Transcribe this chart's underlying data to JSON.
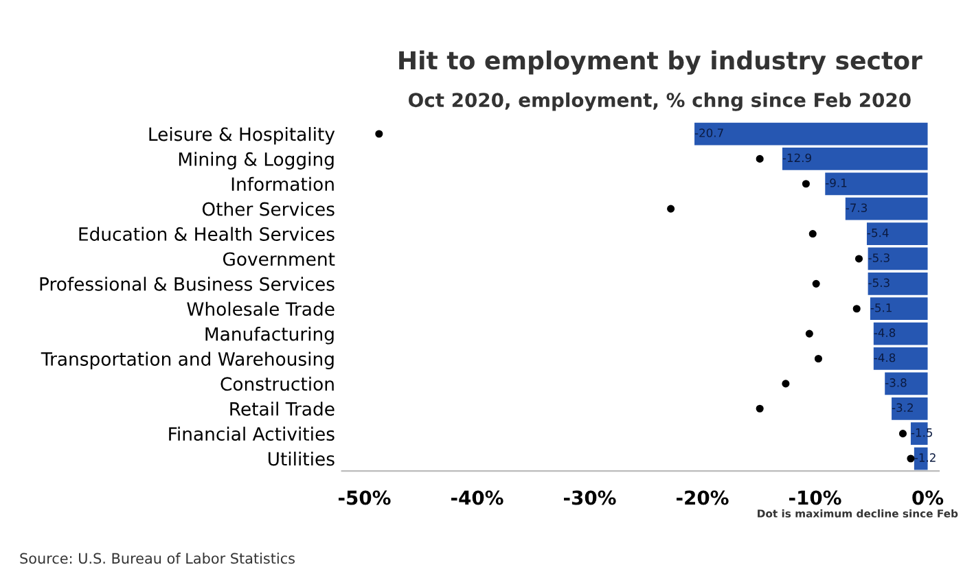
{
  "chart_data": {
    "type": "bar",
    "orientation": "horizontal",
    "title": "Hit to employment by industry sector",
    "subtitle": "Oct 2020, employment, % chng since Feb 2020",
    "categories": [
      "Leisure & Hospitality",
      "Mining & Logging",
      "Information",
      "Other Services",
      "Education & Health Services",
      "Government",
      "Professional & Business Services",
      "Wholesale Trade",
      "Manufacturing",
      "Transportation and Warehousing",
      "Construction",
      "Retail Trade",
      "Financial Activities",
      "Utilities"
    ],
    "series": [
      {
        "color": "#2657b2",
        "values": [
          -20.7,
          -12.9,
          -9.1,
          -7.3,
          -5.4,
          -5.3,
          -5.3,
          -5.1,
          -4.8,
          -4.8,
          -3.8,
          -3.2,
          -1.5,
          -1.2
        ],
        "value_labels": [
          "-20.7",
          "-12.9",
          "-9.1",
          "-7.3",
          "-5.4",
          "-5.3",
          "-5.3",
          "-5.1",
          "-4.8",
          "-4.8",
          "-3.8",
          "-3.2",
          "-1.5",
          "-1.2"
        ]
      },
      {
        "type": "scatter",
        "color": "#000000",
        "values": [
          -48.7,
          -14.9,
          -10.8,
          -22.8,
          -10.2,
          -6.1,
          -9.9,
          -6.3,
          -10.5,
          -9.7,
          -12.6,
          -14.9,
          -2.2,
          -1.5
        ]
      }
    ],
    "marker": "circle",
    "xlim": [
      -52,
      1
    ],
    "xticks": [
      {
        "value": -50,
        "label": "-50%"
      },
      {
        "value": -40,
        "label": "-40%"
      },
      {
        "value": -30,
        "label": "-30%"
      },
      {
        "value": -20,
        "label": "-20%"
      },
      {
        "value": -10,
        "label": "-10%"
      },
      {
        "value": 0,
        "label": "0%"
      }
    ],
    "grid": false,
    "legend": false,
    "annotations": [
      "Dot is maximum decline since Feb",
      "Source: U.S. Bureau of Labor Statistics"
    ]
  }
}
